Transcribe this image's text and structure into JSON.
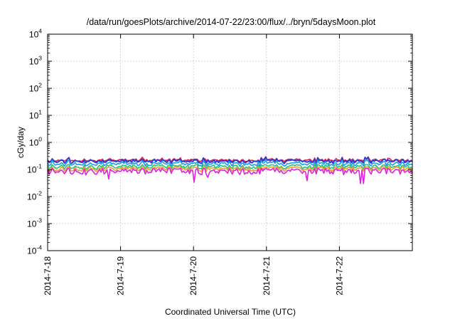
{
  "chart_data": {
    "type": "line",
    "title": "/data/run/goesPlots/archive/2014-07-22/23:00/flux/../bryn/5daysMoon.plot",
    "xlabel": "Coordinated Universal Time (UTC)",
    "ylabel": "cGy/day",
    "y_scale": "log",
    "ylim": [
      0.0001,
      10000
    ],
    "xlim": [
      "2014-7-18",
      "2014-7-23"
    ],
    "x_ticks": [
      "2014-7-18",
      "2014-7-19",
      "2014-7-20",
      "2014-7-21",
      "2014-7-22"
    ],
    "y_ticks": [
      {
        "base": "10",
        "exp": "4"
      },
      {
        "base": "10",
        "exp": "3"
      },
      {
        "base": "10",
        "exp": "2"
      },
      {
        "base": "10",
        "exp": "1"
      },
      {
        "base": "10",
        "exp": "0"
      },
      {
        "base": "10",
        "exp": "-1"
      },
      {
        "base": "10",
        "exp": "-2"
      },
      {
        "base": "10",
        "exp": "-3"
      },
      {
        "base": "10",
        "exp": "-4"
      }
    ],
    "grid": true,
    "series": [
      {
        "color": "#e8184a",
        "level": 0.22,
        "min": 0.13,
        "max": 0.3
      },
      {
        "color": "#2e3bd1",
        "level": 0.2,
        "min": 0.12,
        "max": 0.28
      },
      {
        "color": "#1e9ee8",
        "level": 0.16,
        "min": 0.11,
        "max": 0.22
      },
      {
        "color": "#24c47a",
        "level": 0.125,
        "min": 0.1,
        "max": 0.15
      },
      {
        "color": "#e8a030",
        "level": 0.105,
        "min": 0.085,
        "max": 0.125
      },
      {
        "color": "#e020e0",
        "level": 0.085,
        "min": 0.03,
        "max": 0.11
      }
    ]
  }
}
